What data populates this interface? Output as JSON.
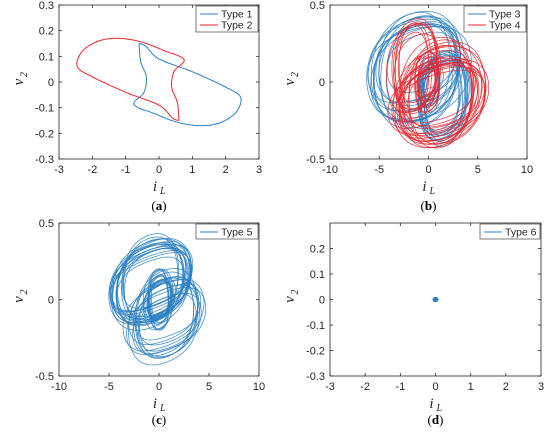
{
  "colors": {
    "blue": "#2a7fc2",
    "red": "#e8262d",
    "axis": "#262626"
  },
  "chart_data": [
    {
      "type": "line",
      "caption": "a",
      "xlabel": "i",
      "xlabel_sub": "L",
      "ylabel": "v",
      "ylabel_sub": "2",
      "xlim": [
        -3,
        3
      ],
      "ylim": [
        -0.3,
        0.3
      ],
      "xticks": [
        -3,
        -2,
        -1,
        0,
        1,
        2,
        3
      ],
      "yticks": [
        -0.3,
        -0.2,
        -0.1,
        0,
        0.1,
        0.2,
        0.3
      ],
      "ytick_labels": [
        "-0.3",
        "-0.2",
        "-0.1",
        "0",
        "0.1",
        "0.2",
        "0.3"
      ],
      "legend": "top-right",
      "series": [
        {
          "name": "Type 1",
          "color": "#2a7fc2",
          "pattern": "loop1"
        },
        {
          "name": "Type 2",
          "color": "#e8262d",
          "pattern": "loop2"
        }
      ]
    },
    {
      "type": "line",
      "caption": "b",
      "xlabel": "i",
      "xlabel_sub": "L",
      "ylabel": "v",
      "ylabel_sub": "2",
      "xlim": [
        -10,
        10
      ],
      "ylim": [
        -0.5,
        0.5
      ],
      "xticks": [
        -10,
        -5,
        0,
        5,
        10
      ],
      "yticks": [
        -0.5,
        0,
        0.5
      ],
      "ytick_labels": [
        "-0.5",
        "0",
        "0.5"
      ],
      "legend": "top-right",
      "series": [
        {
          "name": "Type 3",
          "color": "#2a7fc2",
          "pattern": "chaos3"
        },
        {
          "name": "Type 4",
          "color": "#e8262d",
          "pattern": "chaos4"
        }
      ]
    },
    {
      "type": "line",
      "caption": "c",
      "xlabel": "i",
      "xlabel_sub": "L",
      "ylabel": "v",
      "ylabel_sub": "2",
      "xlim": [
        -10,
        10
      ],
      "ylim": [
        -0.5,
        0.5
      ],
      "xticks": [
        -10,
        -5,
        0,
        5,
        10
      ],
      "yticks": [
        -0.5,
        0,
        0.5
      ],
      "ytick_labels": [
        "-0.5",
        "0",
        "0.5"
      ],
      "legend": "top-right",
      "series": [
        {
          "name": "Type 5",
          "color": "#2a7fc2",
          "pattern": "chaos5"
        }
      ]
    },
    {
      "type": "scatter",
      "caption": "d",
      "xlabel": "i",
      "xlabel_sub": "L",
      "ylabel": "v",
      "ylabel_sub": "2",
      "xlim": [
        -3,
        3
      ],
      "ylim": [
        -0.3,
        0.3
      ],
      "xticks": [
        -3,
        -2,
        -1,
        0,
        1,
        2,
        3
      ],
      "yticks": [
        -0.3,
        -0.2,
        -0.1,
        0,
        0.1,
        0.2
      ],
      "ytick_labels": [
        "-0.3",
        "-0.2",
        "-0.1",
        "0",
        "0.1",
        "0.2"
      ],
      "legend": "top-right",
      "series": [
        {
          "name": "Type 6",
          "color": "#2a7fc2",
          "pattern": "point",
          "x": [
            0
          ],
          "y": [
            0
          ]
        }
      ]
    }
  ]
}
